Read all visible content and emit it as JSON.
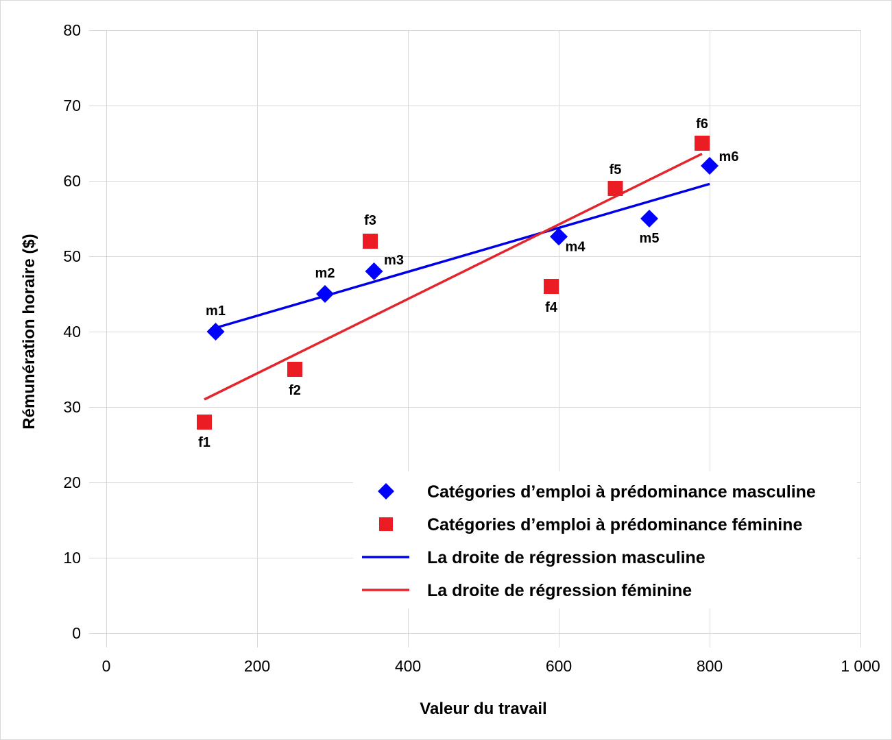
{
  "chart_data": {
    "type": "scatter",
    "xlabel": "Valeur du travail",
    "ylabel": "Rémunération horaire ($)",
    "xlim": [
      0,
      1000
    ],
    "ylim": [
      0,
      80
    ],
    "x_ticks": [
      0,
      200,
      400,
      600,
      800,
      1000
    ],
    "x_tick_labels": [
      "0",
      "200",
      "400",
      "600",
      "800",
      "1 000"
    ],
    "y_ticks": [
      0,
      10,
      20,
      30,
      40,
      50,
      60,
      70,
      80
    ],
    "y_tick_labels": [
      "0",
      "10",
      "20",
      "30",
      "40",
      "50",
      "60",
      "70",
      "80"
    ],
    "grid": true,
    "legend_position": "bottom-right",
    "series": [
      {
        "name": "Catégories d’emploi à prédominance masculine",
        "marker": "diamond",
        "color": "#0000ff",
        "points": [
          {
            "label": "m1",
            "x": 145,
            "y": 40
          },
          {
            "label": "m2",
            "x": 290,
            "y": 45
          },
          {
            "label": "m3",
            "x": 355,
            "y": 48
          },
          {
            "label": "m4",
            "x": 600,
            "y": 52.6
          },
          {
            "label": "m5",
            "x": 720,
            "y": 55
          },
          {
            "label": "m6",
            "x": 800,
            "y": 62
          }
        ]
      },
      {
        "name": "Catégories d’emploi à prédominance féminine",
        "marker": "square",
        "color": "#ec1c24",
        "points": [
          {
            "label": "f1",
            "x": 130,
            "y": 28
          },
          {
            "label": "f2",
            "x": 250,
            "y": 35
          },
          {
            "label": "f3",
            "x": 350,
            "y": 52
          },
          {
            "label": "f4",
            "x": 590,
            "y": 46
          },
          {
            "label": "f5",
            "x": 675,
            "y": 59
          },
          {
            "label": "f6",
            "x": 790,
            "y": 65
          }
        ]
      }
    ],
    "lines": [
      {
        "name": "La droite de régression masculine",
        "color": "#0000e6",
        "x": [
          145,
          800
        ],
        "y": [
          40.5,
          59.6
        ]
      },
      {
        "name": "La droite de régression féminine",
        "color": "#e3262d",
        "x": [
          130,
          790
        ],
        "y": [
          31,
          63.6
        ]
      }
    ]
  }
}
